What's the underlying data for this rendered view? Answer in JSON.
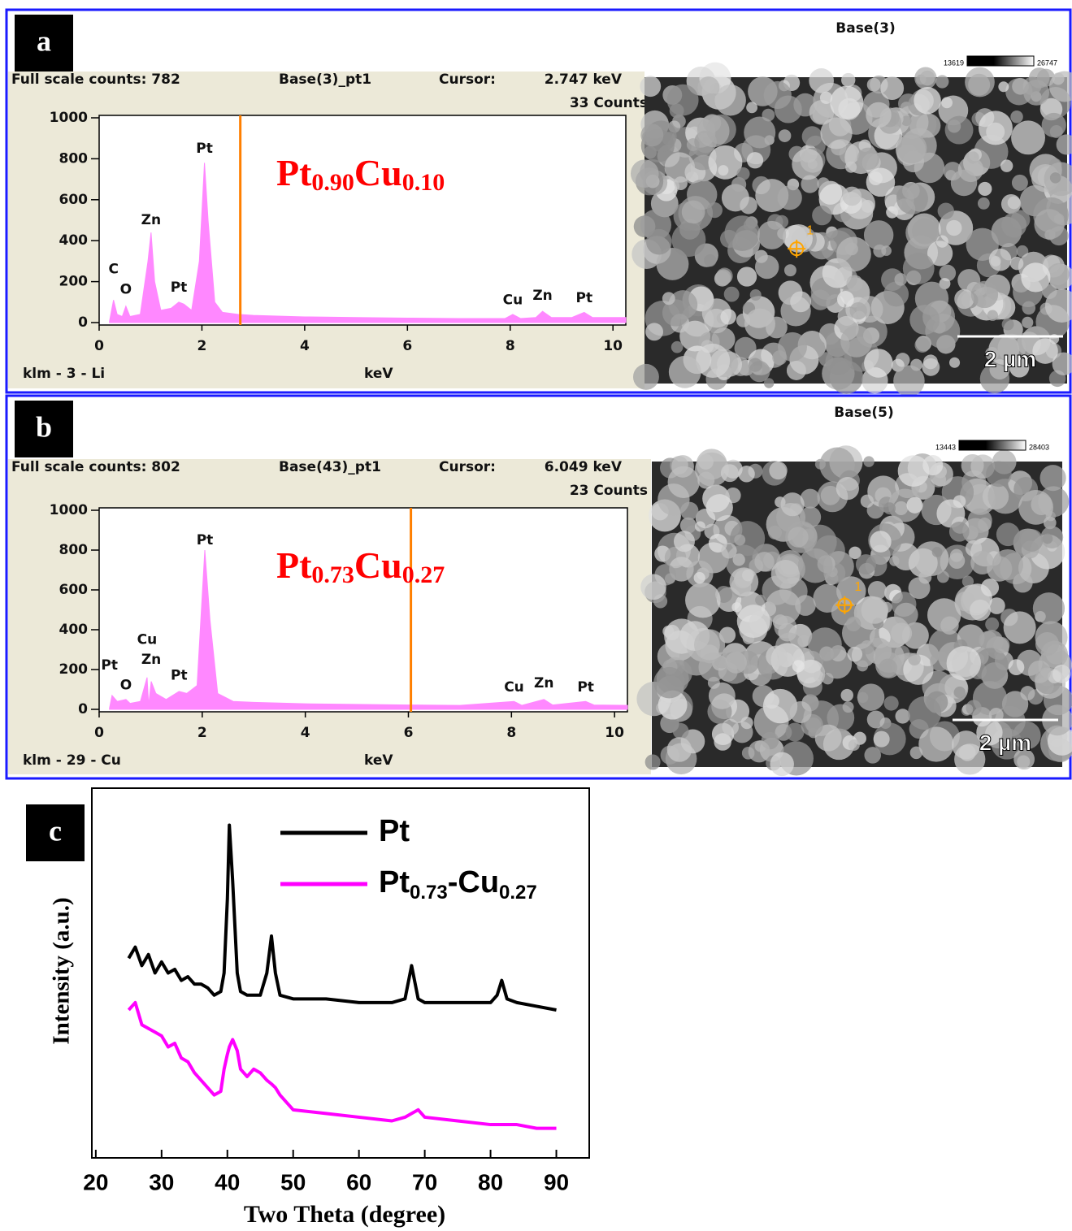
{
  "chart_data": [
    {
      "type": "area",
      "panel_label": "a",
      "header": {
        "full_scale": "Full scale counts: 782",
        "spectrum": "Base(3)_pt1",
        "cursor_label": "Cursor:",
        "cursor": {
          "value": 2.747,
          "label": "2.747 keV"
        },
        "counts": "33 Counts"
      },
      "footer": "klm - 3 - Li",
      "x_label": "keV",
      "composition": "Pt0.90Cu0.10",
      "xlim": [
        0,
        10.25
      ],
      "ylim": [
        0,
        1000
      ],
      "xticks": [
        0,
        2,
        4,
        6,
        8,
        10
      ],
      "yticks": [
        0,
        200,
        400,
        600,
        800,
        1000
      ],
      "x": [
        0.2,
        0.28,
        0.35,
        0.45,
        0.52,
        0.6,
        0.8,
        0.95,
        1.01,
        1.08,
        1.2,
        1.4,
        1.55,
        1.65,
        1.8,
        1.95,
        2.05,
        2.12,
        2.25,
        2.4,
        2.7,
        3,
        4,
        5,
        6,
        7,
        7.9,
        8.05,
        8.2,
        8.5,
        8.63,
        8.8,
        9.2,
        9.44,
        9.6,
        10.25
      ],
      "series": [
        {
          "color": "#ff88ff",
          "values": [
            5,
            110,
            40,
            30,
            80,
            30,
            40,
            300,
            440,
            200,
            60,
            70,
            100,
            90,
            60,
            300,
            780,
            500,
            100,
            50,
            40,
            35,
            28,
            25,
            22,
            20,
            20,
            40,
            20,
            25,
            55,
            25,
            25,
            50,
            25,
            25
          ]
        }
      ],
      "annotations": [
        {
          "text": "C",
          "x": 0.28,
          "y": 260
        },
        {
          "text": "O",
          "x": 0.52,
          "y": 160
        },
        {
          "text": "Zn",
          "x": 1.01,
          "y": 500
        },
        {
          "text": "Pt",
          "x": 1.55,
          "y": 170
        },
        {
          "text": "Pt",
          "x": 2.05,
          "y": 850
        },
        {
          "text": "Cu",
          "x": 8.05,
          "y": 110
        },
        {
          "text": "Zn",
          "x": 8.63,
          "y": 130
        },
        {
          "text": "Pt",
          "x": 9.44,
          "y": 120
        }
      ]
    },
    {
      "type": "area",
      "panel_label": "b",
      "header": {
        "full_scale": "Full scale counts: 802",
        "spectrum": "Base(43)_pt1",
        "cursor_label": "Cursor:",
        "cursor": {
          "value": 6.049,
          "label": "6.049 keV"
        },
        "counts": "23 Counts"
      },
      "footer": "klm - 29 - Cu",
      "x_label": "keV",
      "composition": "Pt0.73Cu0.27",
      "xlim": [
        0,
        10.25
      ],
      "ylim": [
        0,
        1000
      ],
      "xticks": [
        0,
        2,
        4,
        6,
        8,
        10
      ],
      "yticks": [
        0,
        200,
        400,
        600,
        800,
        1000
      ],
      "x": [
        0.2,
        0.25,
        0.35,
        0.52,
        0.6,
        0.8,
        0.93,
        0.96,
        1.01,
        1.1,
        1.3,
        1.55,
        1.7,
        1.9,
        2.05,
        2.15,
        2.3,
        2.6,
        3,
        4,
        5,
        6,
        7,
        8.05,
        8.2,
        8.63,
        8.8,
        9.44,
        9.6,
        10.25
      ],
      "series": [
        {
          "color": "#ff88ff",
          "values": [
            5,
            70,
            40,
            50,
            30,
            40,
            160,
            20,
            140,
            80,
            50,
            90,
            80,
            120,
            800,
            450,
            80,
            40,
            35,
            28,
            25,
            22,
            20,
            40,
            20,
            50,
            22,
            40,
            22,
            20
          ]
        }
      ],
      "annotations": [
        {
          "text": "Pt",
          "x": 0.2,
          "y": 220
        },
        {
          "text": "O",
          "x": 0.52,
          "y": 120
        },
        {
          "text": "Cu",
          "x": 0.93,
          "y": 350
        },
        {
          "text": "Zn",
          "x": 1.01,
          "y": 250
        },
        {
          "text": "Pt",
          "x": 1.55,
          "y": 170
        },
        {
          "text": "Pt",
          "x": 2.05,
          "y": 850
        },
        {
          "text": "Cu",
          "x": 8.05,
          "y": 110
        },
        {
          "text": "Zn",
          "x": 8.63,
          "y": 130
        },
        {
          "text": "Pt",
          "x": 9.44,
          "y": 110
        }
      ]
    },
    {
      "type": "line",
      "panel_label": "c",
      "x_label": "Two Theta (degree)",
      "y_label": "Intensity (a.u.)",
      "legend": "top",
      "xlim": [
        19.4,
        95
      ],
      "ylim": [
        0,
        100
      ],
      "xticks": [
        20,
        30,
        40,
        50,
        60,
        70,
        80,
        90
      ],
      "x": [
        25,
        26,
        27,
        28,
        29,
        30,
        31,
        32,
        33,
        34,
        35,
        36,
        37,
        38,
        39,
        39.5,
        40,
        40.3,
        40.8,
        41.5,
        42,
        43,
        44,
        45,
        46,
        46.7,
        47.3,
        48,
        50,
        55,
        60,
        65,
        67,
        68,
        69,
        70,
        75,
        80,
        81,
        81.7,
        82.5,
        84,
        87,
        90
      ],
      "series": [
        {
          "name": "Pt",
          "color": "#000000",
          "values": [
            54,
            57,
            52,
            55,
            50,
            53,
            50,
            51,
            48,
            49,
            47,
            47,
            46,
            44,
            45,
            50,
            70,
            90,
            75,
            50,
            45,
            44,
            44,
            44,
            50,
            60,
            50,
            44,
            43,
            43,
            42,
            42,
            43,
            52,
            43,
            42,
            42,
            42,
            44,
            48,
            43,
            42,
            41,
            40
          ]
        },
        {
          "name": "Pt0.73-Cu0.27",
          "color": "#ff00ff",
          "values": [
            40,
            42,
            36,
            35,
            34,
            33,
            30,
            31,
            27,
            26,
            23,
            21,
            19,
            17,
            18,
            24,
            28,
            30,
            32,
            29,
            24,
            22,
            24,
            23,
            21,
            20,
            19,
            17,
            13,
            12,
            11,
            10,
            11,
            12,
            13,
            11,
            10,
            9,
            9,
            9,
            9,
            9,
            8,
            8
          ]
        }
      ]
    }
  ],
  "images": [
    {
      "title": "Base(3)",
      "scale_min": "13619",
      "scale_max": "26747",
      "scale_bar": "2 µm",
      "marker": "1"
    },
    {
      "title": "Base(5)",
      "scale_min": "13443",
      "scale_max": "28403",
      "scale_bar": "2 µm",
      "marker": "1"
    }
  ]
}
